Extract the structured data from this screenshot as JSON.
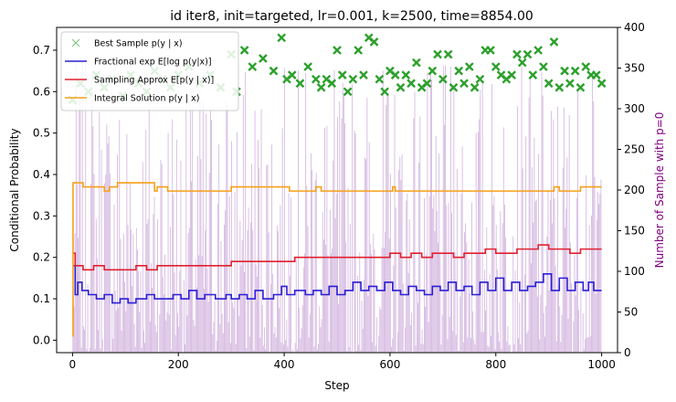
{
  "chart_data": {
    "type": "line",
    "title": "id iter8, init=targeted, lr=0.001, k=2500, time=8854.00",
    "xlabel": "Step",
    "ylabel": "Conditional Probability",
    "y2label": "Number of Sample with p=0",
    "xlim": [
      -30,
      1030
    ],
    "ylim": [
      -0.03,
      0.755
    ],
    "y2lim": [
      0,
      400
    ],
    "xticks": [
      "0",
      "200",
      "400",
      "600",
      "800",
      "1000"
    ],
    "yticks": [
      "0.0",
      "0.1",
      "0.2",
      "0.3",
      "0.4",
      "0.5",
      "0.6",
      "0.7"
    ],
    "y2ticks": [
      "0",
      "50",
      "100",
      "150",
      "200",
      "250",
      "300",
      "350",
      "400"
    ],
    "legend_position": "upper-left",
    "grid": false,
    "colors": {
      "best": "#2ca02c",
      "fractional": "#2b1fd6",
      "sampling": "#e0202f",
      "integral": "#f5a01a",
      "bars": "#b07cc6",
      "y2label": "#800080"
    },
    "series": [
      {
        "key": "best",
        "name": "Best Sample $p(y \\mid x)$",
        "style": "markers",
        "values": [
          [
            0,
            0.58
          ],
          [
            15,
            0.62
          ],
          [
            30,
            0.6
          ],
          [
            45,
            0.64
          ],
          [
            60,
            0.61
          ],
          [
            75,
            0.63
          ],
          [
            95,
            0.59
          ],
          [
            110,
            0.64
          ],
          [
            125,
            0.62
          ],
          [
            140,
            0.6
          ],
          [
            155,
            0.65
          ],
          [
            170,
            0.63
          ],
          [
            185,
            0.61
          ],
          [
            200,
            0.64
          ],
          [
            220,
            0.66
          ],
          [
            240,
            0.62
          ],
          [
            260,
            0.64
          ],
          [
            280,
            0.61
          ],
          [
            300,
            0.69
          ],
          [
            310,
            0.6
          ],
          [
            325,
            0.7
          ],
          [
            340,
            0.66
          ],
          [
            360,
            0.68
          ],
          [
            380,
            0.65
          ],
          [
            395,
            0.73
          ],
          [
            405,
            0.63
          ],
          [
            415,
            0.64
          ],
          [
            430,
            0.62
          ],
          [
            445,
            0.66
          ],
          [
            460,
            0.63
          ],
          [
            470,
            0.61
          ],
          [
            480,
            0.63
          ],
          [
            490,
            0.62
          ],
          [
            500,
            0.7
          ],
          [
            510,
            0.64
          ],
          [
            520,
            0.6
          ],
          [
            530,
            0.63
          ],
          [
            540,
            0.7
          ],
          [
            550,
            0.64
          ],
          [
            560,
            0.73
          ],
          [
            570,
            0.72
          ],
          [
            580,
            0.63
          ],
          [
            590,
            0.6
          ],
          [
            600,
            0.65
          ],
          [
            610,
            0.64
          ],
          [
            620,
            0.61
          ],
          [
            630,
            0.64
          ],
          [
            640,
            0.62
          ],
          [
            650,
            0.67
          ],
          [
            660,
            0.61
          ],
          [
            670,
            0.62
          ],
          [
            680,
            0.65
          ],
          [
            690,
            0.69
          ],
          [
            700,
            0.63
          ],
          [
            710,
            0.69
          ],
          [
            720,
            0.61
          ],
          [
            730,
            0.65
          ],
          [
            740,
            0.62
          ],
          [
            750,
            0.66
          ],
          [
            760,
            0.61
          ],
          [
            770,
            0.63
          ],
          [
            780,
            0.7
          ],
          [
            790,
            0.7
          ],
          [
            800,
            0.66
          ],
          [
            810,
            0.64
          ],
          [
            820,
            0.63
          ],
          [
            830,
            0.64
          ],
          [
            840,
            0.69
          ],
          [
            850,
            0.67
          ],
          [
            860,
            0.69
          ],
          [
            870,
            0.64
          ],
          [
            880,
            0.7
          ],
          [
            890,
            0.66
          ],
          [
            900,
            0.62
          ],
          [
            910,
            0.72
          ],
          [
            920,
            0.61
          ],
          [
            930,
            0.65
          ],
          [
            940,
            0.62
          ],
          [
            950,
            0.65
          ],
          [
            960,
            0.61
          ],
          [
            970,
            0.66
          ],
          [
            980,
            0.64
          ],
          [
            990,
            0.64
          ],
          [
            1000,
            0.62
          ]
        ]
      },
      {
        "key": "fractional",
        "name": "Fractional $\\exp E[\\log p(y|x)]$",
        "style": "step",
        "values": [
          [
            0,
            0.18
          ],
          [
            5,
            0.11
          ],
          [
            10,
            0.14
          ],
          [
            18,
            0.12
          ],
          [
            30,
            0.11
          ],
          [
            45,
            0.1
          ],
          [
            60,
            0.11
          ],
          [
            75,
            0.09
          ],
          [
            90,
            0.1
          ],
          [
            105,
            0.09
          ],
          [
            120,
            0.1
          ],
          [
            140,
            0.11
          ],
          [
            155,
            0.1
          ],
          [
            170,
            0.1
          ],
          [
            190,
            0.11
          ],
          [
            205,
            0.1
          ],
          [
            220,
            0.12
          ],
          [
            235,
            0.1
          ],
          [
            250,
            0.11
          ],
          [
            270,
            0.1
          ],
          [
            290,
            0.11
          ],
          [
            300,
            0.1
          ],
          [
            315,
            0.11
          ],
          [
            330,
            0.1
          ],
          [
            345,
            0.12
          ],
          [
            360,
            0.1
          ],
          [
            380,
            0.11
          ],
          [
            395,
            0.13
          ],
          [
            405,
            0.11
          ],
          [
            420,
            0.12
          ],
          [
            440,
            0.11
          ],
          [
            455,
            0.12
          ],
          [
            470,
            0.11
          ],
          [
            485,
            0.13
          ],
          [
            500,
            0.11
          ],
          [
            515,
            0.12
          ],
          [
            530,
            0.14
          ],
          [
            545,
            0.12
          ],
          [
            560,
            0.13
          ],
          [
            575,
            0.12
          ],
          [
            590,
            0.14
          ],
          [
            605,
            0.12
          ],
          [
            620,
            0.11
          ],
          [
            635,
            0.13
          ],
          [
            650,
            0.12
          ],
          [
            665,
            0.11
          ],
          [
            680,
            0.13
          ],
          [
            695,
            0.12
          ],
          [
            710,
            0.14
          ],
          [
            725,
            0.12
          ],
          [
            740,
            0.13
          ],
          [
            755,
            0.11
          ],
          [
            770,
            0.14
          ],
          [
            785,
            0.12
          ],
          [
            800,
            0.15
          ],
          [
            815,
            0.12
          ],
          [
            830,
            0.14
          ],
          [
            845,
            0.12
          ],
          [
            860,
            0.13
          ],
          [
            875,
            0.14
          ],
          [
            890,
            0.16
          ],
          [
            905,
            0.12
          ],
          [
            920,
            0.15
          ],
          [
            935,
            0.12
          ],
          [
            950,
            0.14
          ],
          [
            965,
            0.12
          ],
          [
            975,
            0.14
          ],
          [
            985,
            0.12
          ],
          [
            1000,
            0.12
          ]
        ]
      },
      {
        "key": "sampling",
        "name": "Sampling Approx $E[p(y \\mid x)]$",
        "style": "step",
        "values": [
          [
            0,
            0.21
          ],
          [
            5,
            0.18
          ],
          [
            10,
            0.18
          ],
          [
            20,
            0.17
          ],
          [
            40,
            0.18
          ],
          [
            60,
            0.17
          ],
          [
            80,
            0.17
          ],
          [
            100,
            0.17
          ],
          [
            120,
            0.18
          ],
          [
            140,
            0.17
          ],
          [
            160,
            0.18
          ],
          [
            180,
            0.18
          ],
          [
            200,
            0.18
          ],
          [
            220,
            0.18
          ],
          [
            240,
            0.18
          ],
          [
            260,
            0.18
          ],
          [
            280,
            0.18
          ],
          [
            300,
            0.19
          ],
          [
            320,
            0.19
          ],
          [
            340,
            0.19
          ],
          [
            360,
            0.19
          ],
          [
            380,
            0.19
          ],
          [
            400,
            0.19
          ],
          [
            420,
            0.2
          ],
          [
            440,
            0.2
          ],
          [
            460,
            0.2
          ],
          [
            480,
            0.2
          ],
          [
            500,
            0.2
          ],
          [
            520,
            0.2
          ],
          [
            540,
            0.2
          ],
          [
            560,
            0.2
          ],
          [
            580,
            0.2
          ],
          [
            600,
            0.21
          ],
          [
            620,
            0.2
          ],
          [
            640,
            0.21
          ],
          [
            660,
            0.2
          ],
          [
            680,
            0.21
          ],
          [
            700,
            0.21
          ],
          [
            720,
            0.2
          ],
          [
            740,
            0.21
          ],
          [
            760,
            0.21
          ],
          [
            780,
            0.22
          ],
          [
            800,
            0.21
          ],
          [
            820,
            0.21
          ],
          [
            840,
            0.22
          ],
          [
            860,
            0.22
          ],
          [
            880,
            0.23
          ],
          [
            900,
            0.22
          ],
          [
            920,
            0.22
          ],
          [
            940,
            0.21
          ],
          [
            960,
            0.22
          ],
          [
            980,
            0.22
          ],
          [
            1000,
            0.22
          ]
        ]
      },
      {
        "key": "integral",
        "name": "Integral Solution $p(y \\mid x)$",
        "style": "step",
        "values": [
          [
            0,
            0.01
          ],
          [
            1,
            0.38
          ],
          [
            20,
            0.37
          ],
          [
            60,
            0.36
          ],
          [
            70,
            0.37
          ],
          [
            85,
            0.38
          ],
          [
            155,
            0.36
          ],
          [
            160,
            0.37
          ],
          [
            180,
            0.36
          ],
          [
            300,
            0.37
          ],
          [
            405,
            0.37
          ],
          [
            410,
            0.36
          ],
          [
            460,
            0.37
          ],
          [
            470,
            0.36
          ],
          [
            605,
            0.37
          ],
          [
            610,
            0.36
          ],
          [
            910,
            0.37
          ],
          [
            920,
            0.36
          ],
          [
            960,
            0.37
          ],
          [
            965,
            0.37
          ],
          [
            1000,
            0.37
          ]
        ]
      }
    ],
    "bars": {
      "name": "Number of Sample with p=0",
      "axis": "right",
      "step_min": 0,
      "step_max": 1000,
      "count": 500,
      "value_range": [
        0,
        355
      ]
    }
  }
}
